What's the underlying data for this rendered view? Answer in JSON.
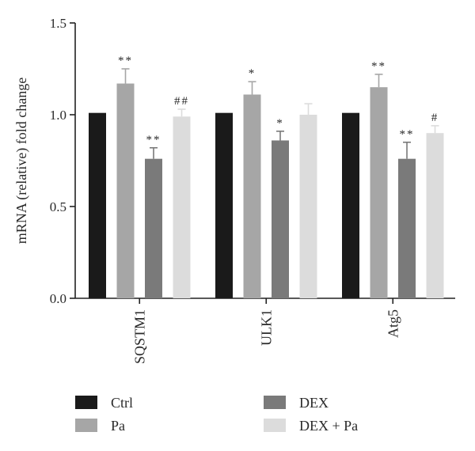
{
  "chart_data": {
    "type": "bar",
    "title": "",
    "xlabel": "",
    "ylabel": "mRNA (relative) fold change",
    "ylim": [
      0,
      1.5
    ],
    "yticks": [
      "0.0",
      "0.5",
      "1.0",
      "1.5"
    ],
    "categories": [
      "SQSTM1",
      "ULK1",
      "Atg5"
    ],
    "series": [
      {
        "name": "Ctrl",
        "color": "#1a1a1a",
        "values": [
          1.01,
          1.01,
          1.01
        ],
        "errors": [
          0,
          0,
          0
        ],
        "annotations": [
          "",
          "",
          ""
        ]
      },
      {
        "name": "Pa",
        "color": "#a6a6a6",
        "values": [
          1.17,
          1.11,
          1.15
        ],
        "errors": [
          0.08,
          0.07,
          0.07
        ],
        "annotations": [
          "**",
          "*",
          "**"
        ]
      },
      {
        "name": "DEX",
        "color": "#7a7a7a",
        "values": [
          0.76,
          0.86,
          0.76
        ],
        "errors": [
          0.06,
          0.05,
          0.09
        ],
        "annotations": [
          "**",
          "*",
          "**"
        ]
      },
      {
        "name": "DEX + Pa",
        "color": "#dcdcdc",
        "values": [
          0.99,
          1.0,
          0.9
        ],
        "errors": [
          0.04,
          0.06,
          0.04
        ],
        "annotations": [
          "##",
          "",
          "#"
        ]
      }
    ],
    "grid": false,
    "legend_position": "bottom"
  }
}
